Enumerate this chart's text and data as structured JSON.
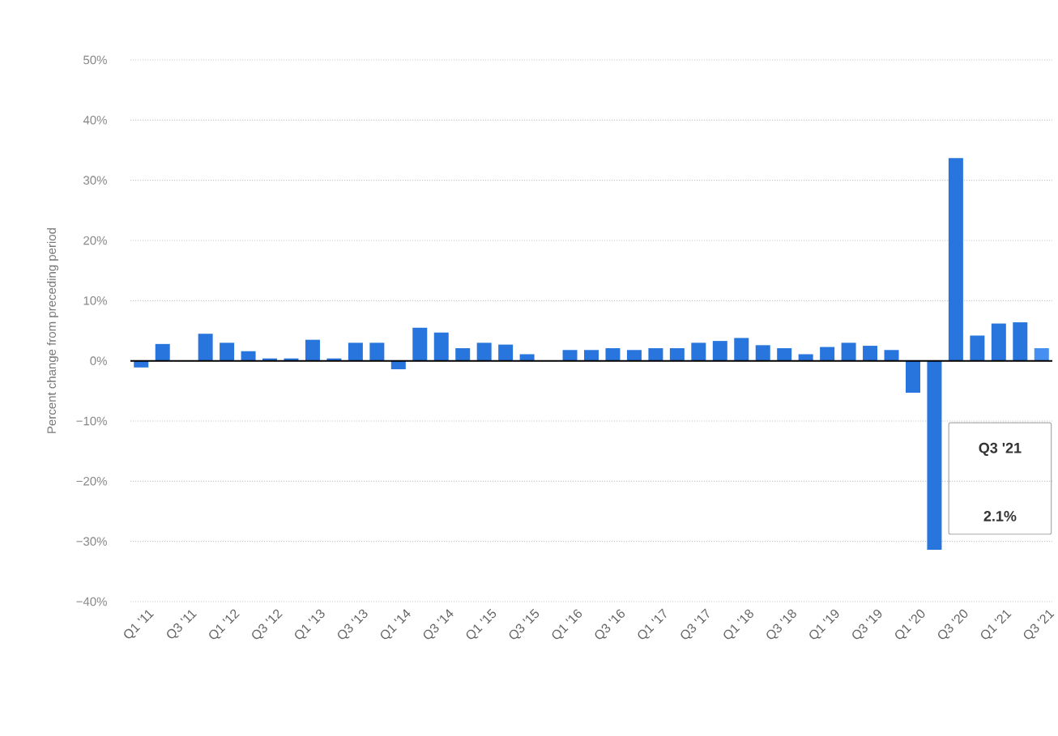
{
  "chart_data": {
    "type": "bar",
    "ylabel": "Percent change from preceding period",
    "categories": [
      "Q1 '11",
      null,
      "Q3 '11",
      null,
      "Q1 '12",
      null,
      "Q3 '12",
      null,
      "Q1 '13",
      null,
      "Q3 '13",
      null,
      "Q1 '14",
      null,
      "Q3 '14",
      null,
      "Q1 '15",
      null,
      "Q3 '15",
      null,
      "Q1 '16",
      null,
      "Q3 '16",
      null,
      "Q1 '17",
      null,
      "Q3 '17",
      null,
      "Q1 '18",
      null,
      "Q3 '18",
      null,
      "Q1 '19",
      null,
      "Q3 '19",
      null,
      "Q1 '20",
      null,
      "Q3 '20",
      null,
      "Q1 '21",
      null,
      "Q3 '21"
    ],
    "values": [
      -1.1,
      2.8,
      0,
      4.5,
      3.0,
      1.6,
      0.4,
      0.4,
      3.5,
      0.4,
      3.0,
      3.0,
      -1.4,
      5.5,
      4.7,
      2.1,
      3.0,
      2.7,
      1.1,
      0,
      1.8,
      1.8,
      2.1,
      1.8,
      2.1,
      2.1,
      3.0,
      3.3,
      3.8,
      2.6,
      2.1,
      1.1,
      2.3,
      3.0,
      2.5,
      1.8,
      -5.3,
      -31.4,
      33.7,
      4.2,
      6.2,
      6.4,
      2.1
    ],
    "colors": [
      "#2876dd",
      "#2876dd",
      "#2876dd",
      "#2876dd",
      "#2876dd",
      "#2876dd",
      "#2876dd",
      "#2876dd",
      "#2876dd",
      "#2876dd",
      "#2876dd",
      "#2876dd",
      "#2876dd",
      "#2876dd",
      "#2876dd",
      "#2876dd",
      "#2876dd",
      "#2876dd",
      "#2876dd",
      "#2876dd",
      "#2876dd",
      "#2876dd",
      "#2876dd",
      "#2876dd",
      "#2876dd",
      "#2876dd",
      "#2876dd",
      "#2876dd",
      "#2876dd",
      "#2876dd",
      "#2876dd",
      "#2876dd",
      "#2876dd",
      "#2876dd",
      "#2876dd",
      "#2876dd",
      "#2876dd",
      "#2876dd",
      "#2876dd",
      "#2876dd",
      "#2876dd",
      "#2876dd",
      "#448ff0"
    ],
    "ylim": [
      -40,
      50
    ],
    "yticks": [
      {
        "value": -40,
        "label": "−40%"
      },
      {
        "value": -30,
        "label": "−30%"
      },
      {
        "value": -20,
        "label": "−20%"
      },
      {
        "value": -10,
        "label": "−10%"
      },
      {
        "value": 0,
        "label": "0%"
      },
      {
        "value": 10,
        "label": "10%"
      },
      {
        "value": 20,
        "label": "20%"
      },
      {
        "value": 30,
        "label": "30%"
      },
      {
        "value": 40,
        "label": "40%"
      },
      {
        "value": 50,
        "label": "50%"
      }
    ],
    "grid": "y",
    "ref_lines": [
      {
        "axis": "y",
        "value": 0,
        "color": "#000000"
      }
    ],
    "annotations": [
      "Q3 '21",
      "2.1%"
    ]
  }
}
